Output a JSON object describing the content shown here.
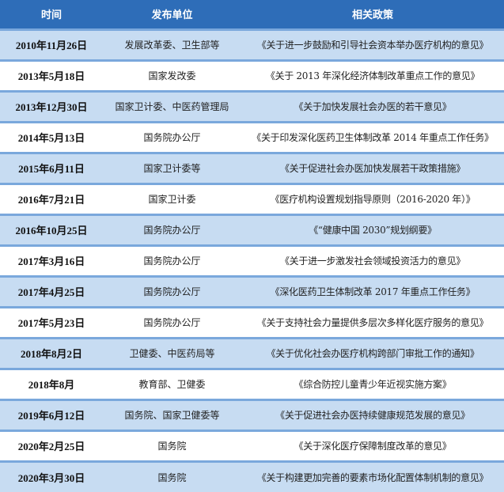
{
  "header": {
    "time": "时间",
    "unit": "发布单位",
    "policy": "相关政策"
  },
  "colors": {
    "header_bg": "#2e6db8",
    "row_alt_bg": "#c7dcf2",
    "separator": "#7aa8dc"
  },
  "rows": [
    {
      "time": "2010年11月26日",
      "unit": "发展改革委、卫生部等",
      "policy": "《关于进一步鼓励和引导社会资本举办医疗机构的意见》"
    },
    {
      "time": "2013年5月18日",
      "unit": "国家发改委",
      "policy": "《关于 2013 年深化经济体制改革重点工作的意见》"
    },
    {
      "time": "2013年12月30日",
      "unit": "国家卫计委、中医药管理局",
      "policy": "《关于加快发展社会办医的若干意见》"
    },
    {
      "time": "2014年5月13日",
      "unit": "国务院办公厅",
      "policy": "《关于印发深化医药卫生体制改革 2014 年重点工作任务》"
    },
    {
      "time": "2015年6月11日",
      "unit": "国家卫计委等",
      "policy": "《关于促进社会办医加快发展若干政策措施》"
    },
    {
      "time": "2016年7月21日",
      "unit": "国家卫计委",
      "policy": "《医疗机构设置规划指导原则（2016-2020 年）》"
    },
    {
      "time": "2016年10月25日",
      "unit": "国务院办公厅",
      "policy": "《“健康中国 2030”规划纲要》"
    },
    {
      "time": "2017年3月16日",
      "unit": "国务院办公厅",
      "policy": "《关于进一步激发社会领域投资活力的意见》"
    },
    {
      "time": "2017年4月25日",
      "unit": "国务院办公厅",
      "policy": "《深化医药卫生体制改革 2017 年重点工作任务》"
    },
    {
      "time": "2017年5月23日",
      "unit": "国务院办公厅",
      "policy": "《关于支持社会力量提供多层次多样化医疗服务的意见》"
    },
    {
      "time": "2018年8月2日",
      "unit": "卫健委、中医药局等",
      "policy": "《关于优化社会办医疗机构跨部门审批工作的通知》"
    },
    {
      "time": "2018年8月",
      "unit": "教育部、卫健委",
      "policy": "《综合防控儿童青少年近视实施方案》"
    },
    {
      "time": "2019年6月12日",
      "unit": "国务院、国家卫健委等",
      "policy": "《关于促进社会办医持续健康规范发展的意见》"
    },
    {
      "time": "2020年2月25日",
      "unit": "国务院",
      "policy": "《关于深化医疗保障制度改革的意见》"
    },
    {
      "time": "2020年3月30日",
      "unit": "国务院",
      "policy": "《关于构建更加完善的要素市场化配置体制机制的意见》"
    }
  ]
}
